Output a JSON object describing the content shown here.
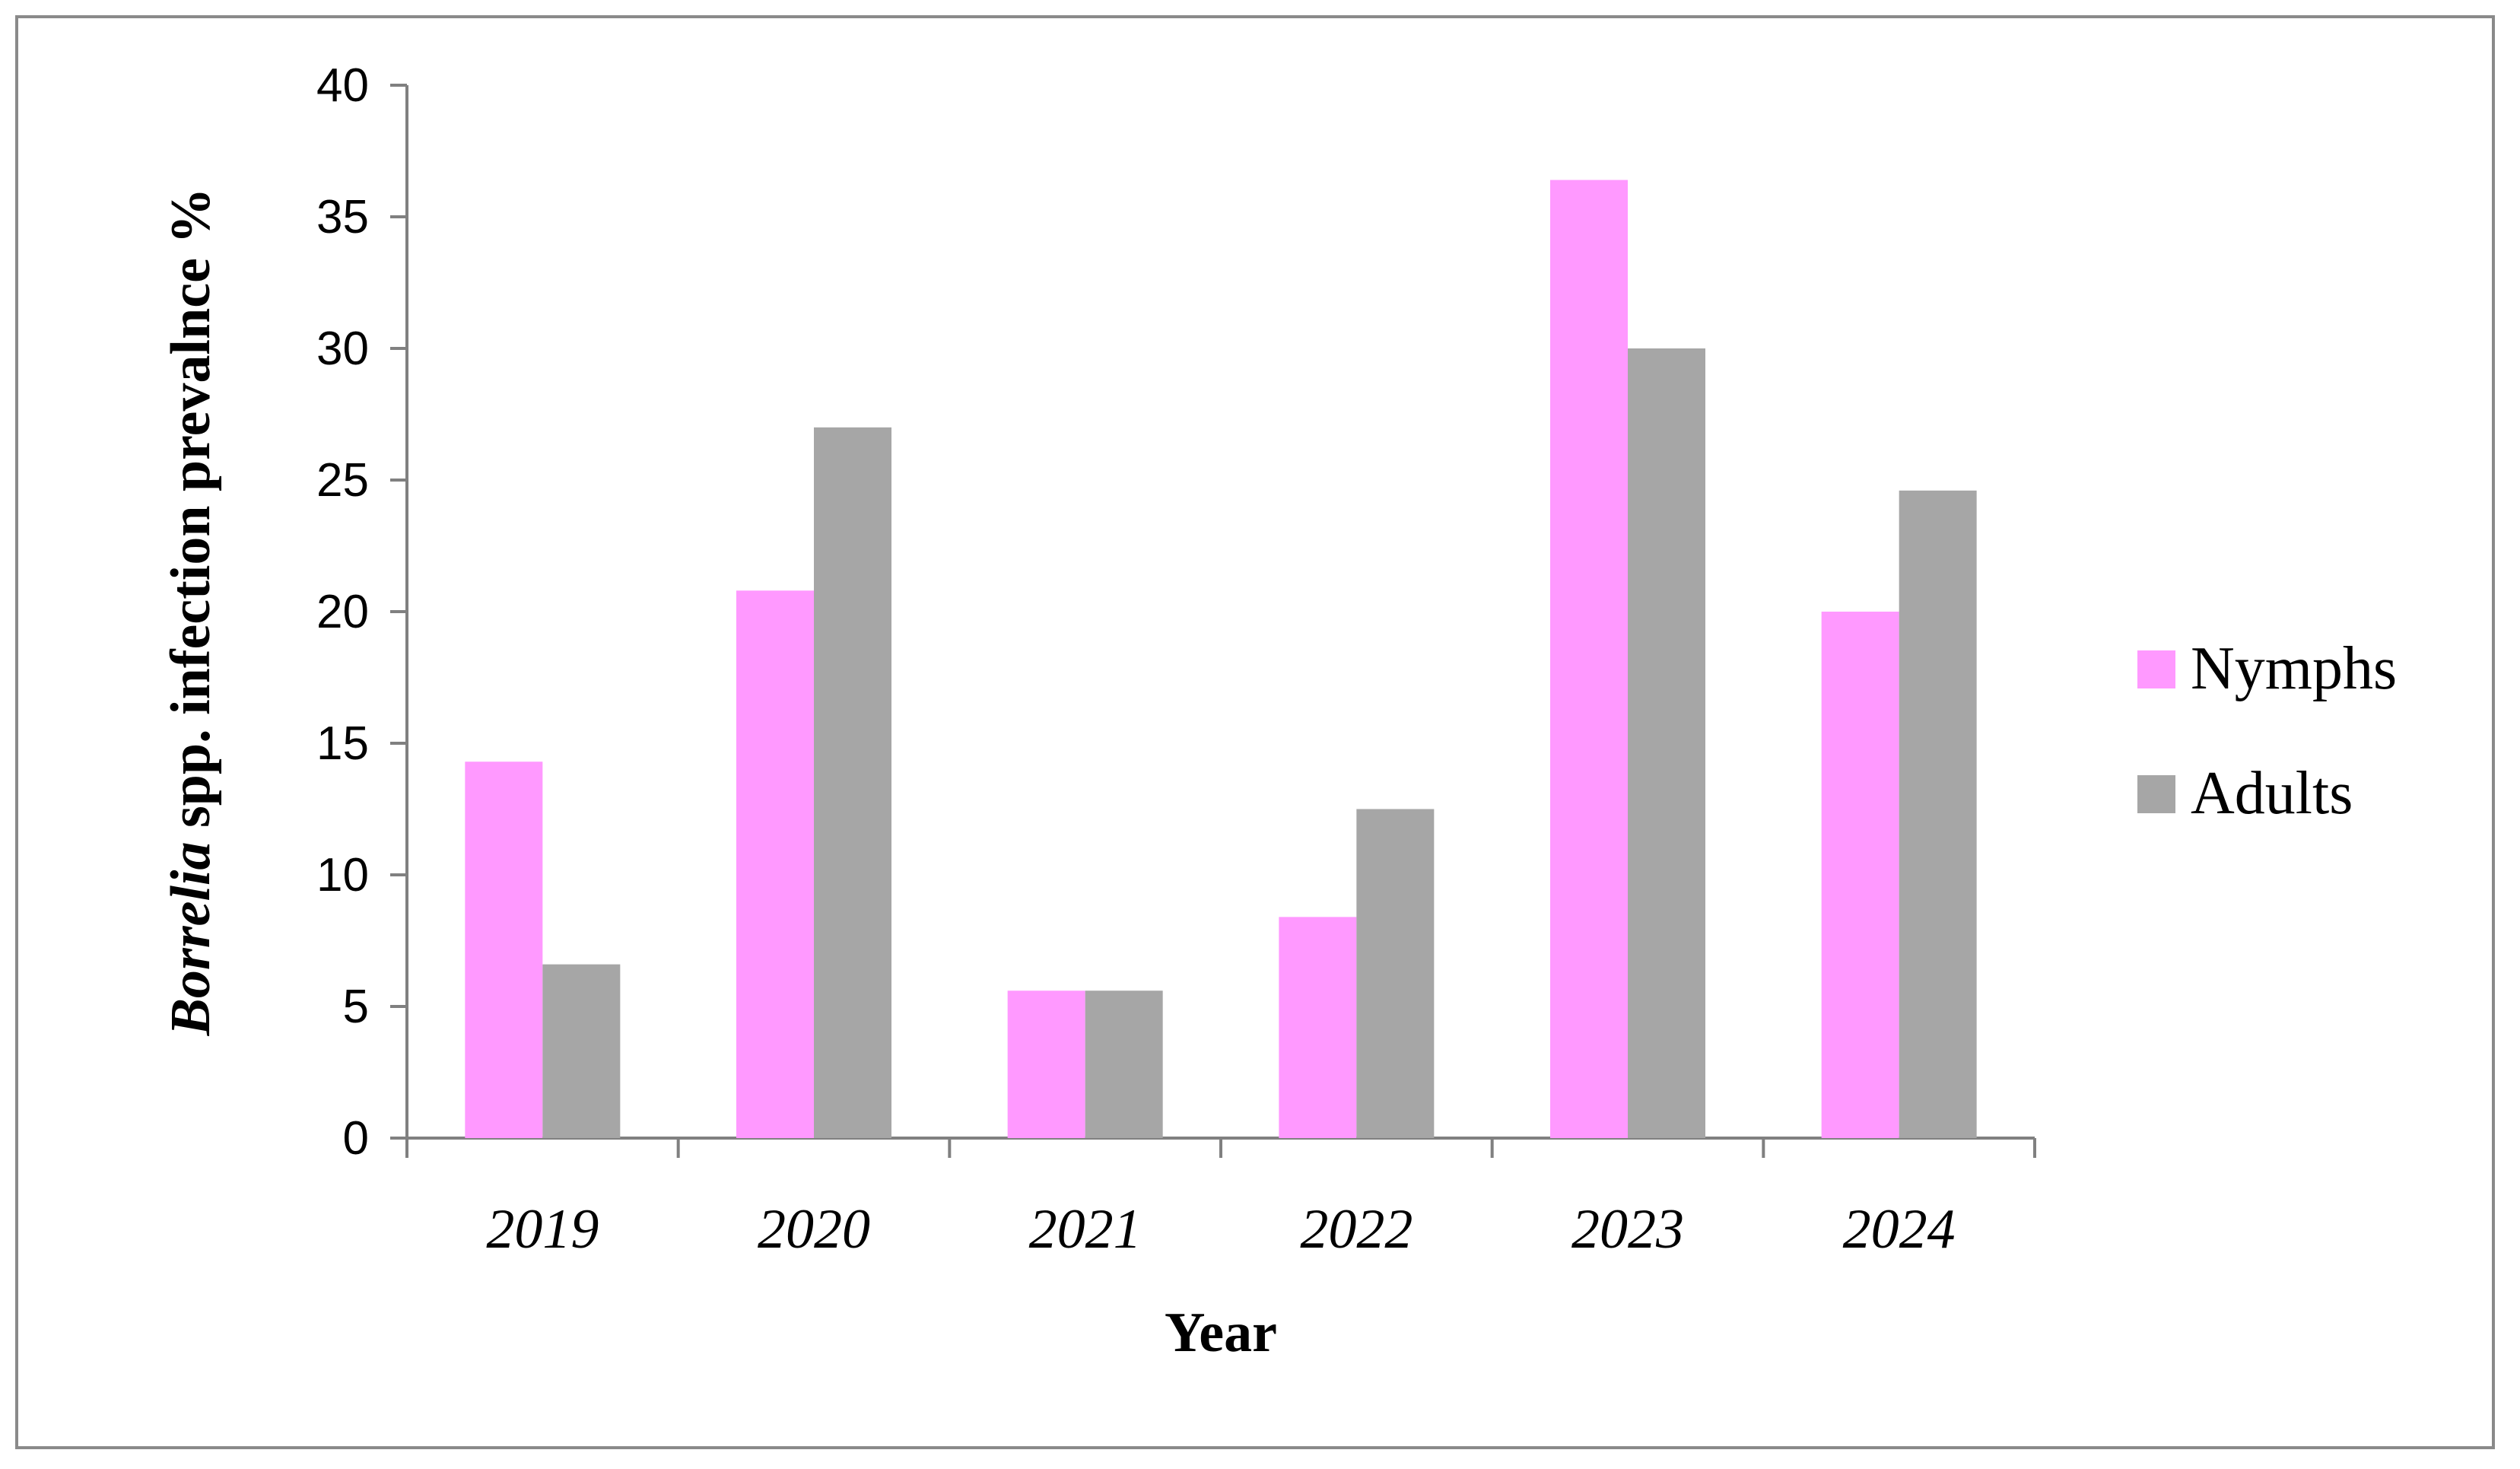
{
  "chart_data": {
    "type": "bar",
    "categories": [
      "2019",
      "2020",
      "2021",
      "2022",
      "2023",
      "2024"
    ],
    "series": [
      {
        "name": "Nymphs",
        "values": [
          14.3,
          20.8,
          5.6,
          8.4,
          36.4,
          20.0
        ],
        "color": "#ff99ff"
      },
      {
        "name": "Adults",
        "values": [
          6.6,
          27.0,
          5.6,
          12.5,
          30.0,
          24.6
        ],
        "color": "#a6a6a6"
      }
    ],
    "xlabel": "Year",
    "ylabel_italic": "Borrelia",
    "ylabel_rest": " spp. infection prevalnce %",
    "ylim": [
      0,
      40
    ],
    "yticks": [
      "0",
      "5",
      "10",
      "15",
      "20",
      "25",
      "30",
      "35",
      "40"
    ],
    "grid": false,
    "legend_position": "right"
  }
}
